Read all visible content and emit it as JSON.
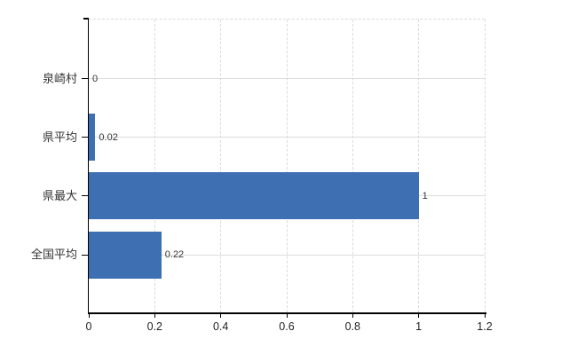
{
  "chart_data": {
    "type": "bar",
    "orientation": "horizontal",
    "title": "",
    "xlabel": "",
    "ylabel": "",
    "categories": [
      "泉崎村",
      "県平均",
      "県最大",
      "全国平均"
    ],
    "values": [
      0,
      0.02,
      1,
      0.22
    ],
    "value_labels": [
      "0",
      "0.02",
      "1",
      "0.22"
    ],
    "xlim": [
      0,
      1.2
    ],
    "xticks": [
      0,
      0.2,
      0.4,
      0.6,
      0.8,
      1,
      1.2
    ],
    "xtick_labels": [
      "0",
      "0.2",
      "0.4",
      "0.6",
      "0.8",
      "1",
      "1.2"
    ],
    "grid": true,
    "legend": false,
    "colors": {
      "bar": "#3e6fb3",
      "grid_horizontal": "#d9ded9",
      "grid_vertical": "#dadada",
      "axis": "#000000",
      "category_label": "#333333",
      "value_label": "#333333",
      "tick_label": "#1f1f1f",
      "background": "#ffffff"
    }
  }
}
